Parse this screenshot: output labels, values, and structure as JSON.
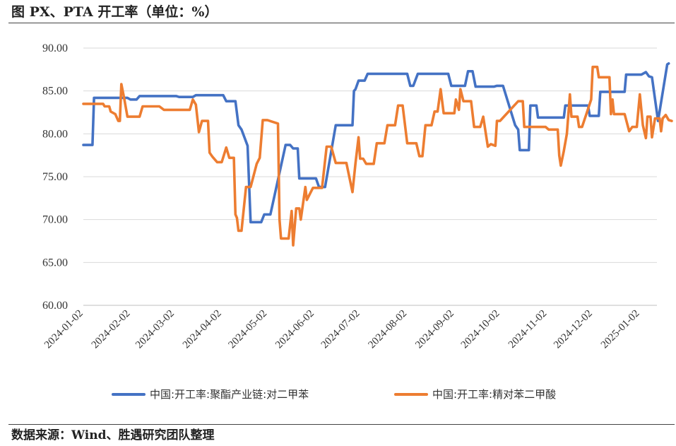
{
  "title": "图    PX、PTA 开工率（单位：%）",
  "source": "数据来源：Wind、胜遇研究团队整理",
  "chart_data": {
    "type": "line",
    "ylim": [
      60,
      90
    ],
    "yticks": [
      "60.00",
      "65.00",
      "70.00",
      "75.00",
      "80.00",
      "85.00",
      "90.00"
    ],
    "xticks": [
      {
        "label": "2024-01-02",
        "date": "2024-01-02"
      },
      {
        "label": "2024-02-02",
        "date": "2024-02-02"
      },
      {
        "label": "2024-03-02",
        "date": "2024-03-02"
      },
      {
        "label": "2024-04-02",
        "date": "2024-04-02"
      },
      {
        "label": "2024-05-02",
        "date": "2024-05-02"
      },
      {
        "label": "2024-06-02",
        "date": "2024-06-02"
      },
      {
        "label": "2024-07-02",
        "date": "2024-07-02"
      },
      {
        "label": "2024-08-02",
        "date": "2024-08-02"
      },
      {
        "label": "2024-09-02",
        "date": "2024-09-02"
      },
      {
        "label": "2024-10-02",
        "date": "2024-10-02"
      },
      {
        "label": "2024-11-02",
        "date": "2024-11-02"
      },
      {
        "label": "2024-12-02",
        "date": "2024-12-02"
      },
      {
        "label": "2025-01-02",
        "date": "2025-01-02"
      }
    ],
    "grid": true,
    "legend_position": "bottom",
    "series": [
      {
        "name": "中国:开工率:聚酯产业链:对二甲苯",
        "color": "#4472C4",
        "points": [
          [
            "2024-01-02",
            78.7
          ],
          [
            "2024-01-08",
            78.7
          ],
          [
            "2024-01-09",
            84.2
          ],
          [
            "2024-01-31",
            84.2
          ],
          [
            "2024-02-02",
            84.0
          ],
          [
            "2024-02-06",
            84.0
          ],
          [
            "2024-02-08",
            84.4
          ],
          [
            "2024-03-03",
            84.4
          ],
          [
            "2024-03-05",
            84.3
          ],
          [
            "2024-03-14",
            84.3
          ],
          [
            "2024-03-16",
            84.5
          ],
          [
            "2024-04-03",
            84.5
          ],
          [
            "2024-04-05",
            83.8
          ],
          [
            "2024-04-11",
            83.8
          ],
          [
            "2024-04-13",
            81.0
          ],
          [
            "2024-04-15",
            80.5
          ],
          [
            "2024-04-19",
            78.6
          ],
          [
            "2024-04-21",
            69.7
          ],
          [
            "2024-04-28",
            69.7
          ],
          [
            "2024-04-30",
            70.6
          ],
          [
            "2024-05-04",
            70.6
          ],
          [
            "2024-05-14",
            78.7
          ],
          [
            "2024-05-17",
            78.7
          ],
          [
            "2024-05-19",
            78.3
          ],
          [
            "2024-05-22",
            78.3
          ],
          [
            "2024-05-23",
            74.8
          ],
          [
            "2024-06-03",
            74.8
          ],
          [
            "2024-06-05",
            73.8
          ],
          [
            "2024-06-09",
            73.8
          ],
          [
            "2024-06-16",
            81.0
          ],
          [
            "2024-06-27",
            81.0
          ],
          [
            "2024-06-28",
            85.0
          ],
          [
            "2024-06-29",
            85.2
          ],
          [
            "2024-07-01",
            86.2
          ],
          [
            "2024-07-05",
            86.2
          ],
          [
            "2024-07-07",
            87.0
          ],
          [
            "2024-08-02",
            87.0
          ],
          [
            "2024-08-04",
            85.6
          ],
          [
            "2024-08-06",
            85.6
          ],
          [
            "2024-08-09",
            87.0
          ],
          [
            "2024-08-29",
            87.0
          ],
          [
            "2024-08-31",
            85.6
          ],
          [
            "2024-09-09",
            85.6
          ],
          [
            "2024-09-11",
            87.3
          ],
          [
            "2024-09-14",
            87.3
          ],
          [
            "2024-09-16",
            85.5
          ],
          [
            "2024-09-28",
            85.5
          ],
          [
            "2024-09-30",
            85.6
          ],
          [
            "2024-10-04",
            85.6
          ],
          [
            "2024-10-12",
            81.0
          ],
          [
            "2024-10-14",
            80.5
          ],
          [
            "2024-10-15",
            78.1
          ],
          [
            "2024-10-21",
            78.1
          ],
          [
            "2024-10-22",
            83.3
          ],
          [
            "2024-10-26",
            83.3
          ],
          [
            "2024-10-27",
            81.9
          ],
          [
            "2024-11-13",
            81.9
          ],
          [
            "2024-11-14",
            83.3
          ],
          [
            "2024-11-29",
            83.3
          ],
          [
            "2024-11-30",
            82.1
          ],
          [
            "2024-12-06",
            82.1
          ],
          [
            "2024-12-07",
            84.9
          ],
          [
            "2024-12-23",
            84.9
          ],
          [
            "2024-12-24",
            86.9
          ],
          [
            "2025-01-03",
            86.9
          ],
          [
            "2025-01-06",
            87.2
          ],
          [
            "2025-01-08",
            86.7
          ],
          [
            "2025-01-10",
            86.6
          ],
          [
            "2025-01-14",
            81.5
          ],
          [
            "2025-01-20",
            88.1
          ],
          [
            "2025-01-21",
            88.2
          ]
        ]
      },
      {
        "name": "中国:开工率:精对苯二甲酸",
        "color": "#ED7D31",
        "points": [
          [
            "2024-01-02",
            83.5
          ],
          [
            "2024-01-15",
            83.5
          ],
          [
            "2024-01-16",
            83.2
          ],
          [
            "2024-01-19",
            83.2
          ],
          [
            "2024-01-20",
            82.6
          ],
          [
            "2024-01-23",
            82.3
          ],
          [
            "2024-01-25",
            81.5
          ],
          [
            "2024-01-26",
            81.5
          ],
          [
            "2024-01-27",
            85.8
          ],
          [
            "2024-01-29",
            84.0
          ],
          [
            "2024-01-31",
            82.0
          ],
          [
            "2024-02-08",
            82.0
          ],
          [
            "2024-02-10",
            83.2
          ],
          [
            "2024-02-21",
            83.2
          ],
          [
            "2024-02-24",
            82.8
          ],
          [
            "2024-03-12",
            82.8
          ],
          [
            "2024-03-14",
            84.0
          ],
          [
            "2024-03-16",
            83.4
          ],
          [
            "2024-03-18",
            80.2
          ],
          [
            "2024-03-20",
            81.5
          ],
          [
            "2024-03-24",
            81.5
          ],
          [
            "2024-03-25",
            77.8
          ],
          [
            "2024-03-27",
            77.3
          ],
          [
            "2024-03-30",
            76.7
          ],
          [
            "2024-04-02",
            76.7
          ],
          [
            "2024-04-05",
            78.4
          ],
          [
            "2024-04-07",
            77.2
          ],
          [
            "2024-04-10",
            77.2
          ],
          [
            "2024-04-11",
            70.6
          ],
          [
            "2024-04-12",
            70.2
          ],
          [
            "2024-04-13",
            68.7
          ],
          [
            "2024-04-15",
            68.7
          ],
          [
            "2024-04-18",
            73.8
          ],
          [
            "2024-04-21",
            73.8
          ],
          [
            "2024-04-25",
            76.5
          ],
          [
            "2024-04-27",
            77.2
          ],
          [
            "2024-04-29",
            81.6
          ],
          [
            "2024-05-02",
            81.6
          ],
          [
            "2024-05-09",
            81.2
          ],
          [
            "2024-05-10",
            70.0
          ],
          [
            "2024-05-11",
            67.8
          ],
          [
            "2024-05-16",
            67.8
          ],
          [
            "2024-05-18",
            71.0
          ],
          [
            "2024-05-19",
            67.0
          ],
          [
            "2024-05-21",
            71.3
          ],
          [
            "2024-05-23",
            71.3
          ],
          [
            "2024-05-24",
            70.0
          ],
          [
            "2024-05-27",
            73.8
          ],
          [
            "2024-05-28",
            72.3
          ],
          [
            "2024-06-01",
            73.7
          ],
          [
            "2024-06-07",
            73.7
          ],
          [
            "2024-06-10",
            78.5
          ],
          [
            "2024-06-13",
            78.5
          ],
          [
            "2024-06-16",
            76.6
          ],
          [
            "2024-06-23",
            76.6
          ],
          [
            "2024-06-27",
            73.2
          ],
          [
            "2024-06-29",
            76.6
          ],
          [
            "2024-07-01",
            79.6
          ],
          [
            "2024-07-02",
            77.1
          ],
          [
            "2024-07-04",
            77.1
          ],
          [
            "2024-07-06",
            76.5
          ],
          [
            "2024-07-11",
            76.5
          ],
          [
            "2024-07-13",
            78.9
          ],
          [
            "2024-07-18",
            78.9
          ],
          [
            "2024-07-20",
            81.0
          ],
          [
            "2024-07-25",
            81.0
          ],
          [
            "2024-07-27",
            83.3
          ],
          [
            "2024-07-30",
            83.3
          ],
          [
            "2024-08-02",
            78.9
          ],
          [
            "2024-08-08",
            78.9
          ],
          [
            "2024-08-10",
            77.4
          ],
          [
            "2024-08-12",
            77.4
          ],
          [
            "2024-08-14",
            81.0
          ],
          [
            "2024-08-18",
            81.0
          ],
          [
            "2024-08-20",
            82.6
          ],
          [
            "2024-08-22",
            82.6
          ],
          [
            "2024-08-24",
            85.2
          ],
          [
            "2024-08-26",
            82.4
          ],
          [
            "2024-09-02",
            82.4
          ],
          [
            "2024-09-03",
            84.0
          ],
          [
            "2024-09-05",
            82.8
          ],
          [
            "2024-09-06",
            85.2
          ],
          [
            "2024-09-08",
            83.8
          ],
          [
            "2024-09-13",
            83.8
          ],
          [
            "2024-09-15",
            80.8
          ],
          [
            "2024-09-19",
            80.8
          ],
          [
            "2024-09-21",
            82.0
          ],
          [
            "2024-09-24",
            78.5
          ],
          [
            "2024-09-26",
            78.8
          ],
          [
            "2024-09-29",
            78.6
          ],
          [
            "2024-09-30",
            81.5
          ],
          [
            "2024-10-02",
            81.5
          ],
          [
            "2024-10-14",
            83.8
          ],
          [
            "2024-10-17",
            83.8
          ],
          [
            "2024-10-18",
            80.8
          ],
          [
            "2024-11-01",
            80.8
          ],
          [
            "2024-11-03",
            80.5
          ],
          [
            "2024-11-09",
            80.5
          ],
          [
            "2024-11-10",
            77.5
          ],
          [
            "2024-11-11",
            76.3
          ],
          [
            "2024-11-13",
            78.0
          ],
          [
            "2024-11-15",
            80.0
          ],
          [
            "2024-11-17",
            84.6
          ],
          [
            "2024-11-18",
            82.0
          ],
          [
            "2024-11-22",
            82.0
          ],
          [
            "2024-11-23",
            80.8
          ],
          [
            "2024-11-25",
            80.8
          ],
          [
            "2024-11-28",
            82.4
          ],
          [
            "2024-12-01",
            84.0
          ],
          [
            "2024-12-02",
            87.8
          ],
          [
            "2024-12-05",
            87.8
          ],
          [
            "2024-12-06",
            86.6
          ],
          [
            "2024-12-13",
            86.6
          ],
          [
            "2024-12-14",
            82.3
          ],
          [
            "2024-12-15",
            84.0
          ],
          [
            "2024-12-16",
            82.3
          ],
          [
            "2024-12-23",
            82.3
          ],
          [
            "2024-12-26",
            80.3
          ],
          [
            "2024-12-28",
            80.8
          ],
          [
            "2024-12-31",
            80.8
          ],
          [
            "2025-01-02",
            84.6
          ],
          [
            "2025-01-04",
            81.0
          ],
          [
            "2025-01-06",
            79.5
          ],
          [
            "2025-01-07",
            82.0
          ],
          [
            "2025-01-09",
            82.0
          ],
          [
            "2025-01-10",
            79.6
          ],
          [
            "2025-01-12",
            81.8
          ],
          [
            "2025-01-15",
            81.8
          ],
          [
            "2025-01-16",
            80.3
          ],
          [
            "2025-01-17",
            81.8
          ],
          [
            "2025-01-18",
            82.0
          ],
          [
            "2025-01-19",
            82.2
          ],
          [
            "2025-01-21",
            81.6
          ],
          [
            "2025-01-23",
            81.5
          ]
        ]
      }
    ]
  }
}
